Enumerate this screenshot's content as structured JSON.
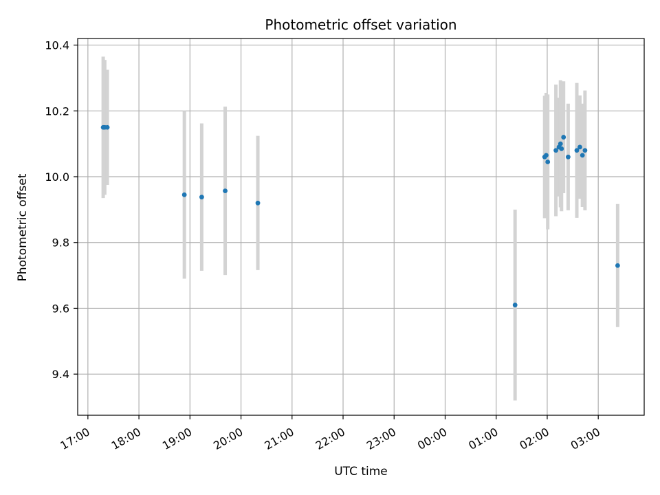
{
  "chart_data": {
    "type": "scatter",
    "title": "Photometric offset variation",
    "xlabel": "UTC time",
    "ylabel": "Photometric offset",
    "x_unit": "hours (UTC, continuing past midnight)",
    "xlim": [
      16.8,
      27.9
    ],
    "ylim": [
      9.275,
      10.42
    ],
    "grid": true,
    "x_ticks": [
      {
        "value": 17,
        "label": "17:00"
      },
      {
        "value": 18,
        "label": "18:00"
      },
      {
        "value": 19,
        "label": "19:00"
      },
      {
        "value": 20,
        "label": "20:00"
      },
      {
        "value": 21,
        "label": "21:00"
      },
      {
        "value": 22,
        "label": "22:00"
      },
      {
        "value": 23,
        "label": "23:00"
      },
      {
        "value": 24,
        "label": "00:00"
      },
      {
        "value": 25,
        "label": "01:00"
      },
      {
        "value": 26,
        "label": "02:00"
      },
      {
        "value": 27,
        "label": "03:00"
      }
    ],
    "y_ticks": [
      {
        "value": 9.4,
        "label": "9.4"
      },
      {
        "value": 9.6,
        "label": "9.6"
      },
      {
        "value": 9.8,
        "label": "9.8"
      },
      {
        "value": 10.0,
        "label": "10.0"
      },
      {
        "value": 10.2,
        "label": "10.2"
      },
      {
        "value": 10.4,
        "label": "10.4"
      }
    ],
    "colors": {
      "point": "#1f77b4",
      "errorbar": "#d3d3d3",
      "grid": "#b0b0b0"
    },
    "points": [
      {
        "x": 17.3,
        "y": 10.15,
        "err": 0.215
      },
      {
        "x": 17.33,
        "y": 10.15,
        "err": 0.205
      },
      {
        "x": 17.38,
        "y": 10.15,
        "err": 0.175
      },
      {
        "x": 18.89,
        "y": 9.945,
        "err": 0.255
      },
      {
        "x": 19.23,
        "y": 9.938,
        "err": 0.224
      },
      {
        "x": 19.69,
        "y": 9.957,
        "err": 0.256
      },
      {
        "x": 20.33,
        "y": 9.92,
        "err": 0.204
      },
      {
        "x": 25.37,
        "y": 9.61,
        "err": 0.29
      },
      {
        "x": 25.95,
        "y": 10.06,
        "err": 0.186
      },
      {
        "x": 25.98,
        "y": 10.065,
        "err": 0.19
      },
      {
        "x": 26.01,
        "y": 10.045,
        "err": 0.205
      },
      {
        "x": 26.17,
        "y": 10.08,
        "err": 0.2
      },
      {
        "x": 26.23,
        "y": 10.09,
        "err": 0.15
      },
      {
        "x": 26.26,
        "y": 10.1,
        "err": 0.193
      },
      {
        "x": 26.28,
        "y": 10.085,
        "err": 0.19
      },
      {
        "x": 26.32,
        "y": 10.12,
        "err": 0.17
      },
      {
        "x": 26.41,
        "y": 10.06,
        "err": 0.162
      },
      {
        "x": 26.58,
        "y": 10.08,
        "err": 0.205
      },
      {
        "x": 26.64,
        "y": 10.09,
        "err": 0.157
      },
      {
        "x": 26.69,
        "y": 10.065,
        "err": 0.157
      },
      {
        "x": 26.74,
        "y": 10.08,
        "err": 0.182
      },
      {
        "x": 27.38,
        "y": 9.73,
        "err": 0.187
      }
    ]
  }
}
